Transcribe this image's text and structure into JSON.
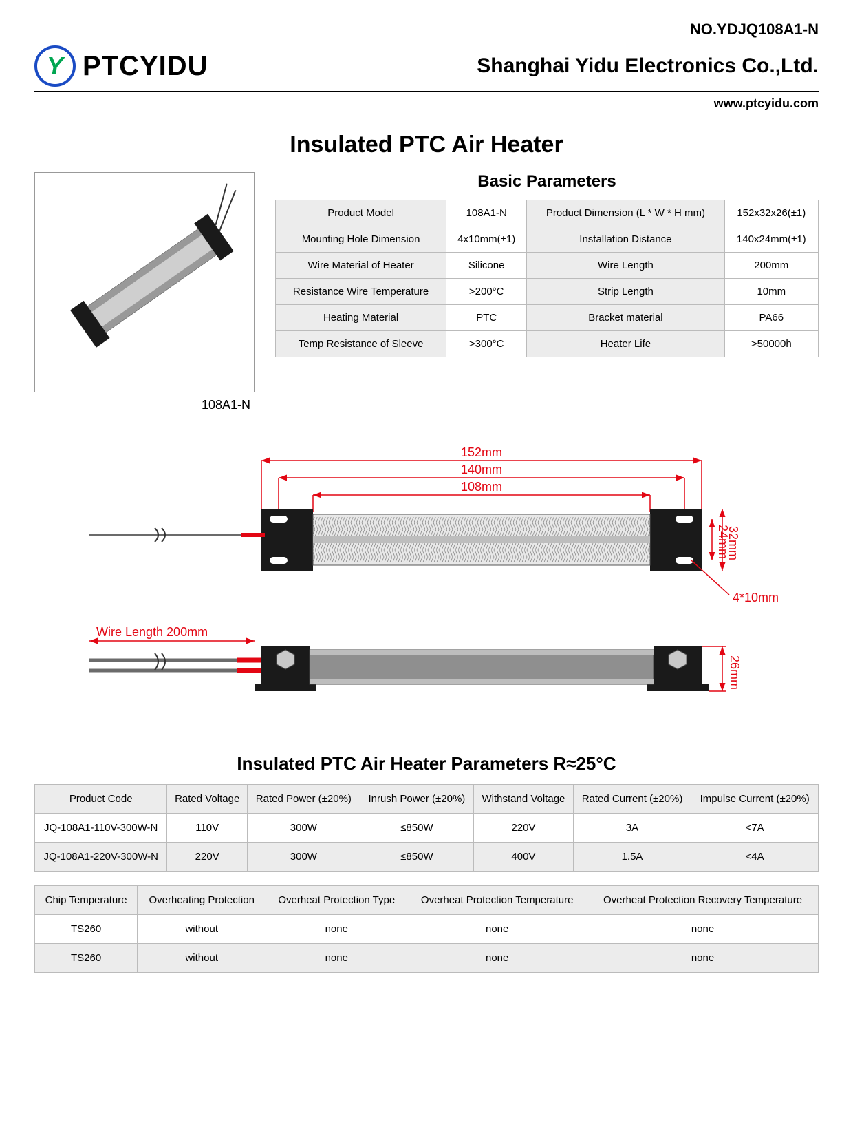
{
  "doc_number": "NO.YDJQ108A1-N",
  "brand": "PTCYIDU",
  "logo_letter": "Y",
  "company": "Shanghai Yidu Electronics Co.,Ltd.",
  "website": "www.ptcyidu.com",
  "main_title": "Insulated PTC Air Heater",
  "photo_caption": "108A1-N",
  "basic_params_title": "Basic Parameters",
  "basic_params": [
    [
      "Product Model",
      "108A1-N",
      "Product Dimension (L * W * H mm)",
      "152x32x26(±1)"
    ],
    [
      "Mounting Hole Dimension",
      "4x10mm(±1)",
      "Installation Distance",
      "140x24mm(±1)"
    ],
    [
      "Wire Material of Heater",
      "Silicone",
      "Wire Length",
      "200mm"
    ],
    [
      "Resistance Wire Temperature",
      ">200°C",
      "Strip Length",
      "10mm"
    ],
    [
      "Heating Material",
      "PTC",
      "Bracket material",
      "PA66"
    ],
    [
      "Temp Resistance of Sleeve",
      ">300°C",
      "Heater Life",
      ">50000h"
    ]
  ],
  "diagram": {
    "dim_152": "152mm",
    "dim_140": "140mm",
    "dim_108": "108mm",
    "dim_32": "32mm",
    "dim_24": "24mm",
    "dim_26": "26mm",
    "dim_4x10": "4*10mm",
    "wire_length": "Wire Length 200mm",
    "colors": {
      "bracket": "#1a1a1a",
      "body_light": "#d9d9d9",
      "body_dark": "#8a8a8a",
      "fin": "#bfbfbf",
      "wire_red": "#e30613",
      "wire_grey": "#6b6b6b",
      "dim_color": "#e30613"
    }
  },
  "elec_title": "Insulated PTC Air Heater Parameters R≈25°C",
  "elec_headers": [
    "Product Code",
    "Rated Voltage",
    "Rated Power (±20%)",
    "Inrush Power (±20%)",
    "Withstand Voltage",
    "Rated Current (±20%)",
    "Impulse Current (±20%)"
  ],
  "elec_rows": [
    [
      "JQ-108A1-110V-300W-N",
      "110V",
      "300W",
      "≤850W",
      "220V",
      "3A",
      "<7A"
    ],
    [
      "JQ-108A1-220V-300W-N",
      "220V",
      "300W",
      "≤850W",
      "400V",
      "1.5A",
      "<4A"
    ]
  ],
  "prot_headers": [
    "Chip Temperature",
    "Overheating Protection",
    "Overheat Protection Type",
    "Overheat Protection Temperature",
    "Overheat Protection Recovery Temperature"
  ],
  "prot_rows": [
    [
      "TS260",
      "without",
      "none",
      "none",
      "none"
    ],
    [
      "TS260",
      "without",
      "none",
      "none",
      "none"
    ]
  ],
  "colors": {
    "border": "#bbbbbb",
    "header_bg": "#ececec",
    "text": "#000000",
    "logo_ring": "#1a4bc4",
    "logo_letter": "#00a651"
  }
}
